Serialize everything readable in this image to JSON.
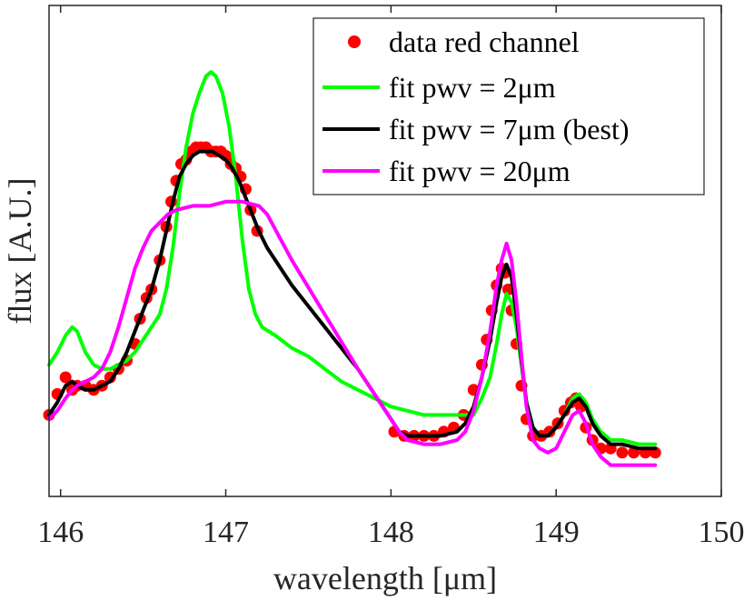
{
  "chart_data": {
    "type": "line",
    "title": "",
    "xlabel": "wavelength [μm]",
    "ylabel": "flux [A.U.]",
    "xlim": [
      145.93,
      150
    ],
    "ylim": [
      0,
      1
    ],
    "x_ticks": [
      146,
      147,
      148,
      149,
      150
    ],
    "x_tick_labels": [
      "146",
      "147",
      "148",
      "149",
      "150"
    ],
    "y_ticks": [],
    "grid": false,
    "legend_position": "top-right",
    "series": [
      {
        "name": "data red channel",
        "kind": "scatter",
        "color": "#ff0000",
        "x": [
          145.93,
          145.98,
          146.03,
          146.07,
          146.1,
          146.15,
          146.2,
          146.25,
          146.3,
          146.35,
          146.4,
          146.45,
          146.48,
          146.52,
          146.55,
          146.6,
          146.64,
          146.67,
          146.7,
          146.73,
          146.76,
          146.79,
          146.82,
          146.85,
          146.88,
          146.91,
          146.94,
          146.97,
          147.0,
          147.03,
          147.06,
          147.09,
          147.12,
          147.15,
          147.19,
          148.02,
          148.08,
          148.14,
          148.2,
          148.26,
          148.32,
          148.38,
          148.44,
          148.5,
          148.55,
          148.58,
          148.61,
          148.64,
          148.67,
          148.69,
          148.71,
          148.73,
          148.76,
          148.79,
          148.82,
          148.86,
          148.91,
          148.96,
          149.01,
          149.05,
          149.09,
          149.12,
          149.15,
          149.18,
          149.22,
          149.27,
          149.33,
          149.4,
          149.47,
          149.54,
          149.6
        ],
        "y": [
          0.16,
          0.21,
          0.25,
          0.22,
          0.23,
          0.23,
          0.22,
          0.23,
          0.25,
          0.27,
          0.29,
          0.33,
          0.39,
          0.44,
          0.46,
          0.53,
          0.61,
          0.67,
          0.72,
          0.76,
          0.77,
          0.79,
          0.8,
          0.8,
          0.8,
          0.79,
          0.79,
          0.79,
          0.78,
          0.76,
          0.75,
          0.73,
          0.7,
          0.65,
          0.6,
          0.12,
          0.11,
          0.11,
          0.11,
          0.11,
          0.12,
          0.13,
          0.16,
          0.22,
          0.28,
          0.34,
          0.41,
          0.47,
          0.51,
          0.5,
          0.46,
          0.41,
          0.33,
          0.23,
          0.15,
          0.11,
          0.11,
          0.12,
          0.14,
          0.17,
          0.19,
          0.2,
          0.18,
          0.13,
          0.1,
          0.08,
          0.08,
          0.07,
          0.07,
          0.07,
          0.07
        ]
      },
      {
        "name": "fit pwv = 2μm",
        "kind": "line",
        "color": "#00ff00",
        "x": [
          145.93,
          145.98,
          146.03,
          146.07,
          146.1,
          146.15,
          146.2,
          146.25,
          146.3,
          146.35,
          146.4,
          146.45,
          146.5,
          146.55,
          146.6,
          146.64,
          146.68,
          146.72,
          146.76,
          146.8,
          146.84,
          146.88,
          146.91,
          146.94,
          146.98,
          147.02,
          147.06,
          147.1,
          147.14,
          147.18,
          147.22,
          147.3,
          147.4,
          147.5,
          147.6,
          147.7,
          147.8,
          147.9,
          148.0,
          148.1,
          148.2,
          148.3,
          148.4,
          148.5,
          148.55,
          148.6,
          148.64,
          148.67,
          148.7,
          148.73,
          148.76,
          148.79,
          148.82,
          148.86,
          148.9,
          148.95,
          149.0,
          149.05,
          149.1,
          149.14,
          149.18,
          149.22,
          149.27,
          149.33,
          149.4,
          149.5,
          149.6
        ],
        "y": [
          0.28,
          0.31,
          0.35,
          0.37,
          0.36,
          0.31,
          0.28,
          0.27,
          0.27,
          0.28,
          0.29,
          0.31,
          0.34,
          0.37,
          0.4,
          0.46,
          0.56,
          0.69,
          0.8,
          0.88,
          0.93,
          0.97,
          0.98,
          0.97,
          0.93,
          0.85,
          0.73,
          0.58,
          0.46,
          0.4,
          0.37,
          0.35,
          0.32,
          0.3,
          0.27,
          0.24,
          0.22,
          0.2,
          0.18,
          0.17,
          0.16,
          0.16,
          0.16,
          0.16,
          0.2,
          0.25,
          0.33,
          0.4,
          0.45,
          0.43,
          0.37,
          0.28,
          0.19,
          0.13,
          0.11,
          0.11,
          0.13,
          0.16,
          0.2,
          0.21,
          0.19,
          0.15,
          0.12,
          0.1,
          0.1,
          0.09,
          0.09
        ]
      },
      {
        "name": "fit pwv = 7μm (best)",
        "kind": "line",
        "color": "#000000",
        "x": [
          145.93,
          145.98,
          146.03,
          146.07,
          146.1,
          146.15,
          146.2,
          146.25,
          146.3,
          146.35,
          146.4,
          146.45,
          146.5,
          146.55,
          146.6,
          146.64,
          146.68,
          146.72,
          146.76,
          146.8,
          146.84,
          146.88,
          146.92,
          146.96,
          147.0,
          147.04,
          147.08,
          147.12,
          147.16,
          147.2,
          147.25,
          147.4,
          147.6,
          147.8,
          148.0,
          148.05,
          148.1,
          148.2,
          148.3,
          148.4,
          148.45,
          148.5,
          148.55,
          148.6,
          148.64,
          148.67,
          148.7,
          148.73,
          148.76,
          148.79,
          148.82,
          148.86,
          148.9,
          148.95,
          149.0,
          149.05,
          149.1,
          149.14,
          149.18,
          149.22,
          149.27,
          149.33,
          149.4,
          149.5,
          149.6
        ],
        "y": [
          0.16,
          0.19,
          0.23,
          0.24,
          0.23,
          0.22,
          0.22,
          0.23,
          0.24,
          0.27,
          0.31,
          0.36,
          0.41,
          0.46,
          0.53,
          0.6,
          0.67,
          0.73,
          0.76,
          0.78,
          0.79,
          0.79,
          0.79,
          0.78,
          0.77,
          0.75,
          0.72,
          0.68,
          0.64,
          0.6,
          0.56,
          0.47,
          0.37,
          0.27,
          0.15,
          0.12,
          0.11,
          0.11,
          0.11,
          0.12,
          0.14,
          0.18,
          0.25,
          0.34,
          0.43,
          0.49,
          0.52,
          0.49,
          0.4,
          0.29,
          0.19,
          0.13,
          0.11,
          0.11,
          0.13,
          0.16,
          0.19,
          0.2,
          0.18,
          0.14,
          0.11,
          0.09,
          0.09,
          0.08,
          0.08
        ]
      },
      {
        "name": "fit pwv = 20μm",
        "kind": "line",
        "color": "#ff00ff",
        "x": [
          145.93,
          145.98,
          146.03,
          146.07,
          146.1,
          146.15,
          146.2,
          146.25,
          146.3,
          146.35,
          146.4,
          146.45,
          146.5,
          146.55,
          146.6,
          146.65,
          146.7,
          146.8,
          146.9,
          147.0,
          147.1,
          147.2,
          147.25,
          147.4,
          147.6,
          147.8,
          148.0,
          148.05,
          148.1,
          148.2,
          148.3,
          148.4,
          148.45,
          148.5,
          148.55,
          148.6,
          148.64,
          148.67,
          148.7,
          148.73,
          148.76,
          148.79,
          148.82,
          148.86,
          148.9,
          148.95,
          149.0,
          149.05,
          149.1,
          149.14,
          149.18,
          149.22,
          149.27,
          149.33,
          149.4,
          149.5,
          149.6
        ],
        "y": [
          0.15,
          0.17,
          0.2,
          0.22,
          0.23,
          0.24,
          0.25,
          0.27,
          0.31,
          0.37,
          0.44,
          0.51,
          0.56,
          0.6,
          0.62,
          0.64,
          0.65,
          0.66,
          0.66,
          0.67,
          0.67,
          0.66,
          0.64,
          0.53,
          0.4,
          0.27,
          0.15,
          0.12,
          0.1,
          0.09,
          0.09,
          0.1,
          0.12,
          0.17,
          0.25,
          0.36,
          0.47,
          0.53,
          0.57,
          0.53,
          0.43,
          0.3,
          0.18,
          0.1,
          0.08,
          0.07,
          0.08,
          0.12,
          0.16,
          0.17,
          0.14,
          0.09,
          0.06,
          0.04,
          0.04,
          0.04,
          0.04
        ]
      }
    ]
  }
}
